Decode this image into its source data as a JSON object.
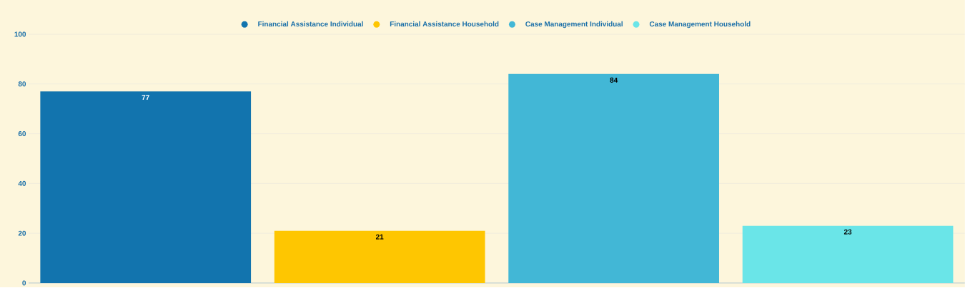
{
  "chart_data": {
    "type": "bar",
    "categories": [
      null,
      null,
      null,
      null
    ],
    "series": [
      {
        "name": "Financial Assistance Individual",
        "color": "#1274ae",
        "values": [
          77,
          null,
          null,
          null
        ]
      },
      {
        "name": "Financial Assistance Household",
        "color": "#fec601",
        "values": [
          null,
          21,
          null,
          null
        ]
      },
      {
        "name": "Case Management Individual",
        "color": "#42b7d6",
        "values": [
          null,
          null,
          84,
          null
        ]
      },
      {
        "name": "Case Management Household",
        "color": "#6ae5e8",
        "values": [
          null,
          null,
          null,
          23
        ]
      }
    ],
    "ylim": [
      0,
      100
    ],
    "yticks": [
      0,
      20,
      40,
      60,
      80,
      100
    ],
    "grid": "y",
    "legend": "top",
    "data_labels": true
  }
}
